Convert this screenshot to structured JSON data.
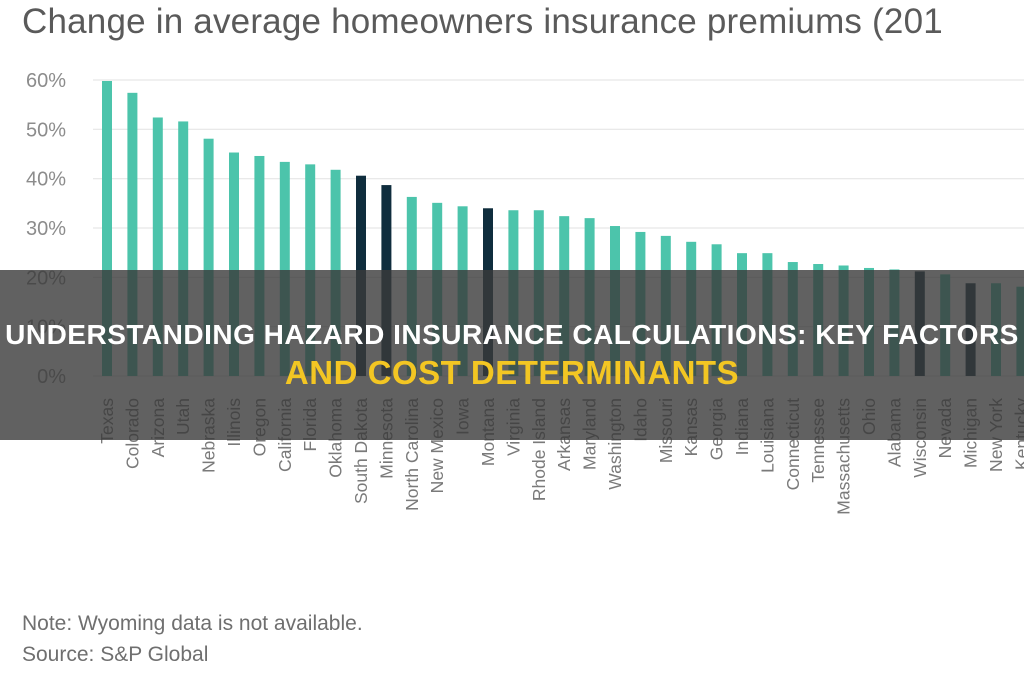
{
  "chart_data": {
    "type": "bar",
    "title": "Change in average homeowners insurance premiums (201",
    "xlabel": "",
    "ylabel": "",
    "ylim": [
      0,
      60
    ],
    "yticks": [
      "0%",
      "10%",
      "20%",
      "30%",
      "40%",
      "50%",
      "60%"
    ],
    "grid": true,
    "categories": [
      "Texas",
      "Colorado",
      "Arizona",
      "Utah",
      "Nebraska",
      "Illinois",
      "Oregon",
      "California",
      "Florida",
      "Oklahoma",
      "South Dakota",
      "Minnesota",
      "North Carolina",
      "New Mexico",
      "Iowa",
      "Montana",
      "Virginia",
      "Rhode Island",
      "Arkansas",
      "Maryland",
      "Washington",
      "Idaho",
      "Missouri",
      "Kansas",
      "Georgia",
      "Indiana",
      "Louisiana",
      "Connecticut",
      "Tennessee",
      "Massachusetts",
      "Ohio",
      "Alabama",
      "Wisconsin",
      "Nevada",
      "Michigan",
      "New York",
      "Kentucky"
    ],
    "values": [
      59.8,
      57.4,
      52.4,
      51.6,
      48.1,
      45.3,
      44.6,
      43.4,
      42.9,
      41.8,
      40.6,
      38.7,
      36.3,
      35.1,
      34.4,
      34.0,
      33.6,
      33.6,
      32.4,
      32.0,
      30.4,
      29.2,
      28.4,
      27.2,
      26.7,
      24.9,
      24.9,
      23.1,
      22.7,
      22.4,
      21.9,
      21.6,
      21.2,
      20.6,
      18.8,
      18.8,
      18.1
    ],
    "colors": {
      "default": "#4cc4ab",
      "highlight": "#0f2d3d",
      "highlight_categories": [
        "South Dakota",
        "Minnesota",
        "Montana",
        "Wisconsin",
        "Michigan"
      ]
    }
  },
  "footnotes": {
    "note": "Note: Wyoming data is not available.",
    "source": "Source: S&P Global"
  },
  "banner": {
    "line1": "Understanding Hazard Insurance Calculations: Key Factors",
    "line2": "And Cost Determinants"
  }
}
